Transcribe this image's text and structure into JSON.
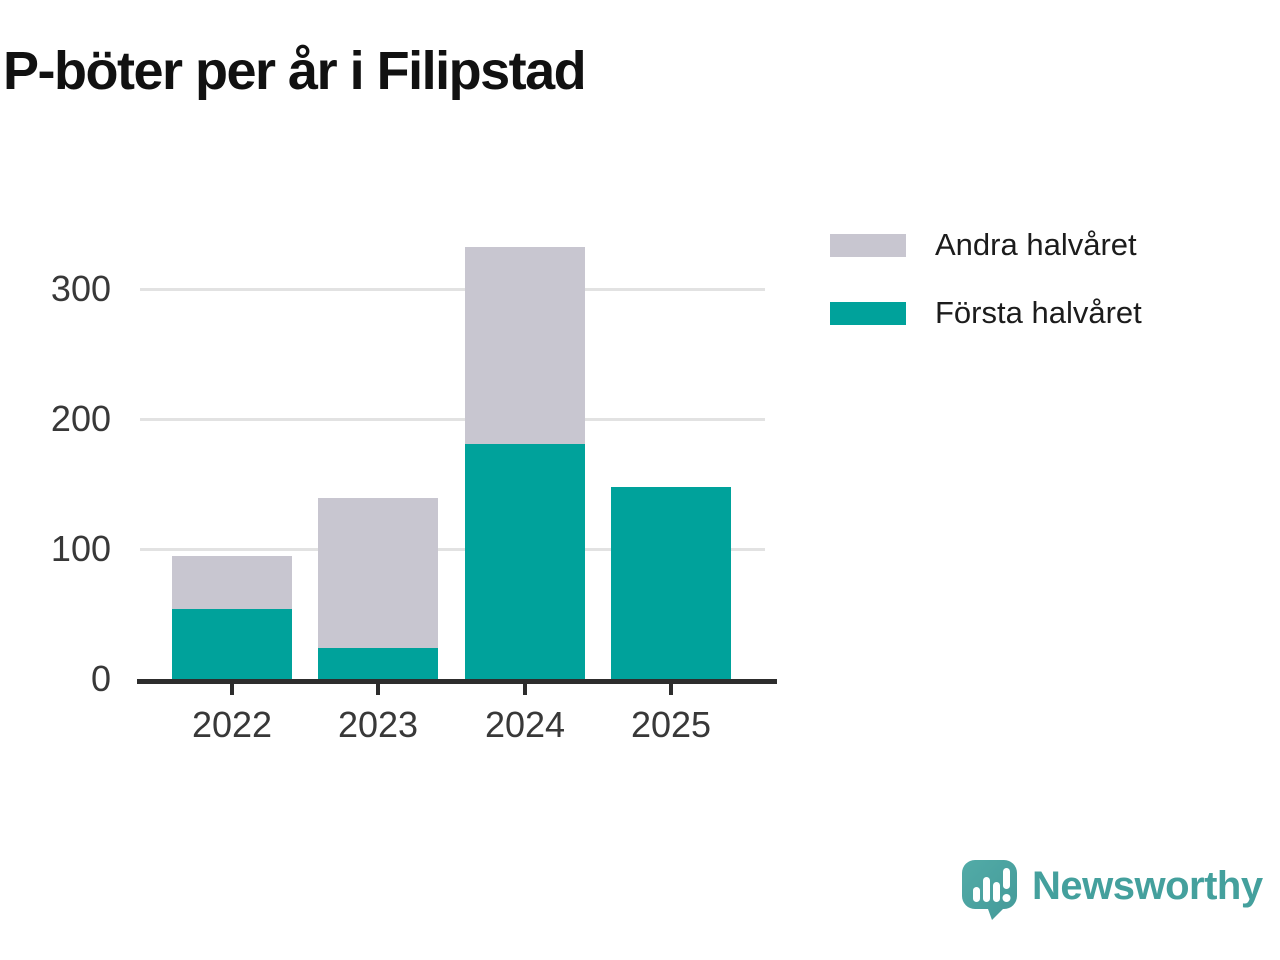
{
  "title": "P-böter per år i Filipstad",
  "chart_data": {
    "type": "bar",
    "stacked": true,
    "title": "P-böter per år i Filipstad",
    "categories": [
      "2022",
      "2023",
      "2024",
      "2025"
    ],
    "series": [
      {
        "name": "Första halvåret",
        "color": "#00a29b",
        "values": [
          54,
          24,
          181,
          148
        ]
      },
      {
        "name": "Andra halvåret",
        "color": "#c8c6d0",
        "values": [
          41,
          115,
          151,
          0
        ]
      }
    ],
    "totals": [
      95,
      139,
      332,
      148
    ],
    "xlabel": "",
    "ylabel": "",
    "yticks": [
      0,
      100,
      200,
      300
    ],
    "ylim": [
      0,
      345
    ],
    "grid": "horizontal",
    "legend_position": "top-right",
    "style": {
      "axis_color": "#2d2d2d",
      "grid_color": "#e2e2e2",
      "tick_label_color": "#383838",
      "background": "#ffffff",
      "title_color": "#111111"
    }
  },
  "legend": {
    "items": [
      {
        "label": "Andra halvåret",
        "color": "#c8c6d0"
      },
      {
        "label": "Första halvåret",
        "color": "#00a29b"
      }
    ]
  },
  "branding": {
    "name": "Newsworthy",
    "icon": "newsworthy-speech-bubble-bar-chart-icon",
    "icon_color": "#4aa5a2",
    "text_color": "#44a09d"
  }
}
